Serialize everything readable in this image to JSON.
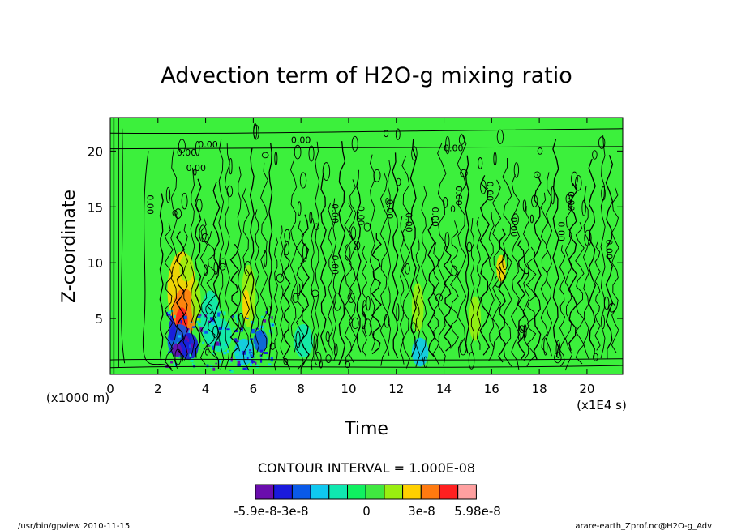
{
  "chart_data": {
    "type": "heatmap",
    "title": "Advection term of H2O-g mixing ratio",
    "xlabel": "Time",
    "ylabel": "Z-coordinate",
    "x_unit_label": "(x1E4 s)",
    "y_unit_label": "(x1000 m)",
    "xlim": [
      0,
      21.5
    ],
    "ylim": [
      0,
      23
    ],
    "x_ticks": [
      "0",
      "2",
      "4",
      "6",
      "8",
      "10",
      "12",
      "14",
      "16",
      "18",
      "20"
    ],
    "y_ticks": [
      "5",
      "10",
      "15",
      "20"
    ],
    "contour_interval_text": "CONTOUR INTERVAL = 1.000E-08",
    "contour_labels": [
      "0.00",
      "0.00",
      "0.00",
      "0.00",
      "0.00",
      "0.00",
      "0.00",
      "0.00",
      "0.00",
      "0.00",
      "0.00",
      "0.00",
      "0.00",
      "0.00",
      "0.00",
      "0.00",
      "0.00",
      "0.00"
    ],
    "colorbar": {
      "colors": [
        "#6a0dad",
        "#1a1adc",
        "#0a5ae8",
        "#10c8f0",
        "#10e8b0",
        "#10f060",
        "#40e840",
        "#9aee10",
        "#ffd000",
        "#ff7a10",
        "#ff2020",
        "#ffa0a0"
      ],
      "labels": [
        "-5.9e-8",
        "-3e-8",
        "0",
        "3e-8",
        "5.98e-8"
      ]
    },
    "background_color": "#3cf03c",
    "grid": false
  },
  "footer": {
    "left": "/usr/bin/gpview  2010-11-15",
    "right": "arare-earth_Zprof.nc@H2O-g_Adv"
  }
}
